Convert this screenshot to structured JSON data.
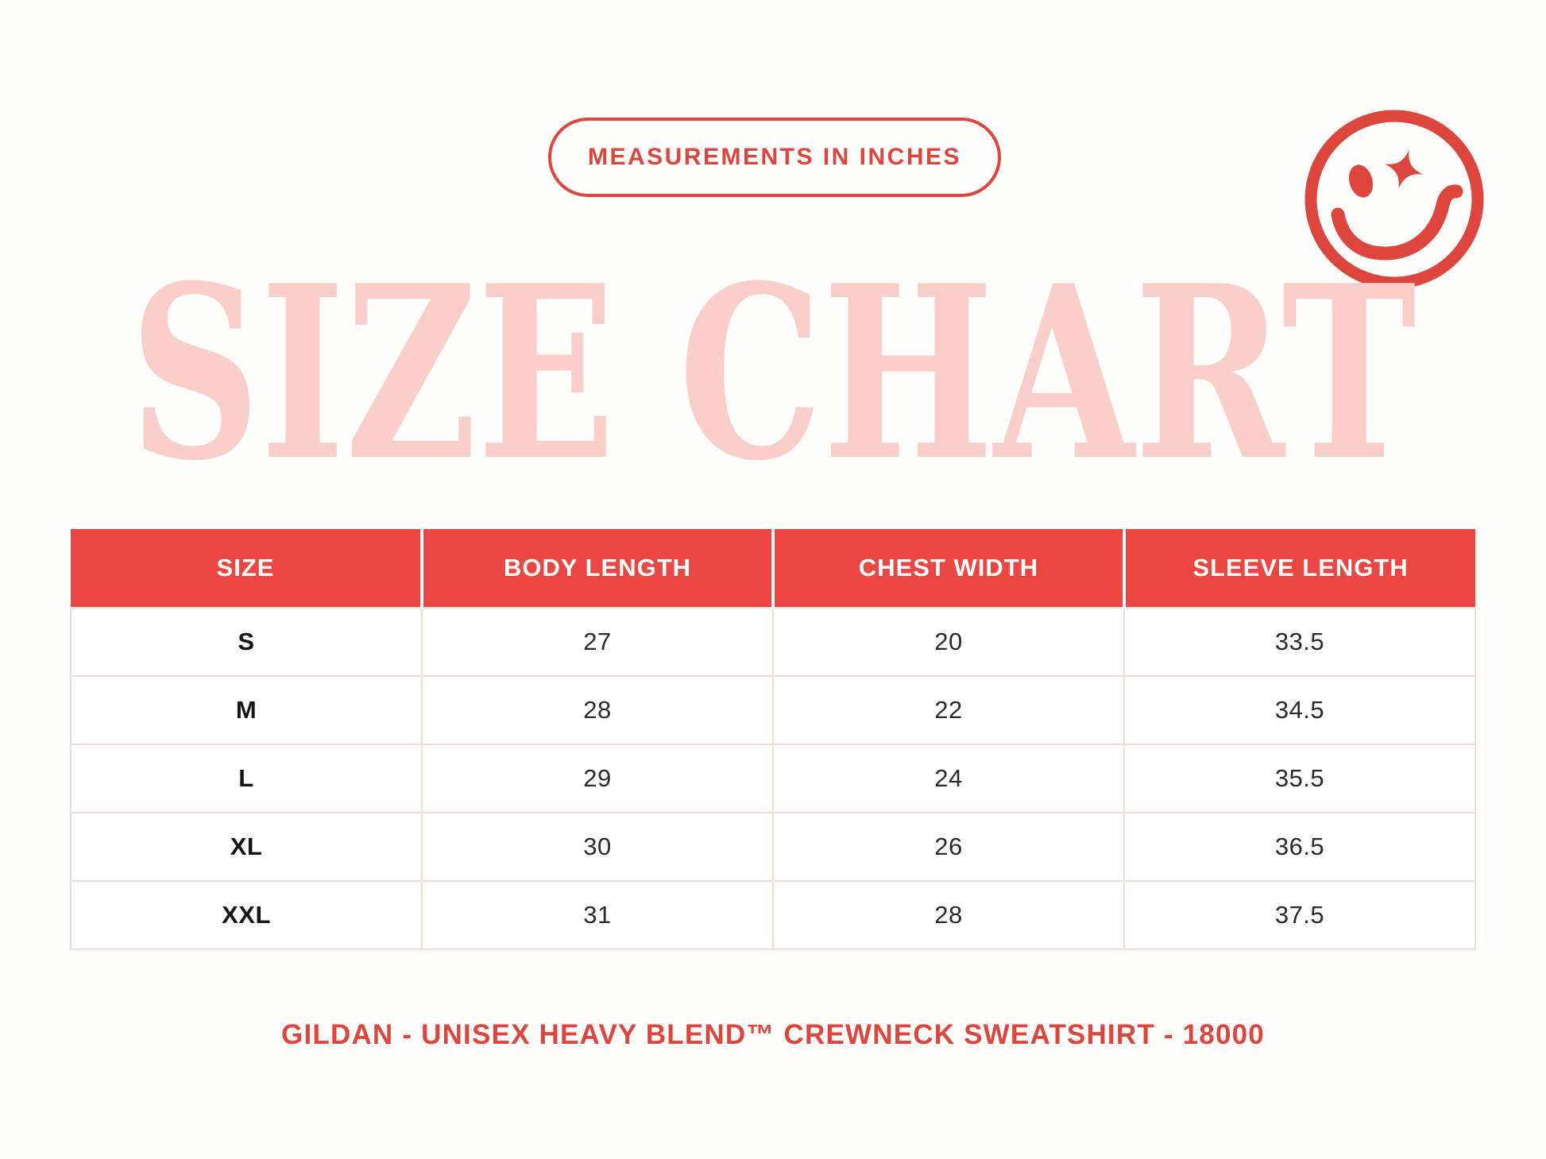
{
  "page": {
    "colors": {
      "background": "#fffefd",
      "accent": "#DD463D",
      "header-red": "#EA4642",
      "title-pink": "#FACFC9",
      "border-pink": "#F6DCD8",
      "ink": "#2b2b2b"
    }
  },
  "badge": {
    "label": "MEASUREMENTS IN INCHES"
  },
  "title": {
    "text": "SIZE CHART",
    "color": "#FACFC9"
  },
  "smiley_icon": {
    "name": "winking-smiley-icon",
    "color": "#DD463D"
  },
  "chart_data": {
    "type": "table",
    "title": "SIZE CHART",
    "subtitle": "MEASUREMENTS IN INCHES",
    "columns": [
      "SIZE",
      "BODY LENGTH",
      "CHEST WIDTH",
      "SLEEVE LENGTH"
    ],
    "rows": [
      [
        "S",
        "27",
        "20",
        "33.5"
      ],
      [
        "M",
        "28",
        "22",
        "34.5"
      ],
      [
        "L",
        "29",
        "24",
        "35.5"
      ],
      [
        "XL",
        "30",
        "26",
        "36.5"
      ],
      [
        "XXL",
        "31",
        "28",
        "37.5"
      ]
    ]
  },
  "footer": {
    "text": "GILDAN - UNISEX HEAVY BLEND™ CREWNECK SWEATSHIRT - 18000"
  }
}
